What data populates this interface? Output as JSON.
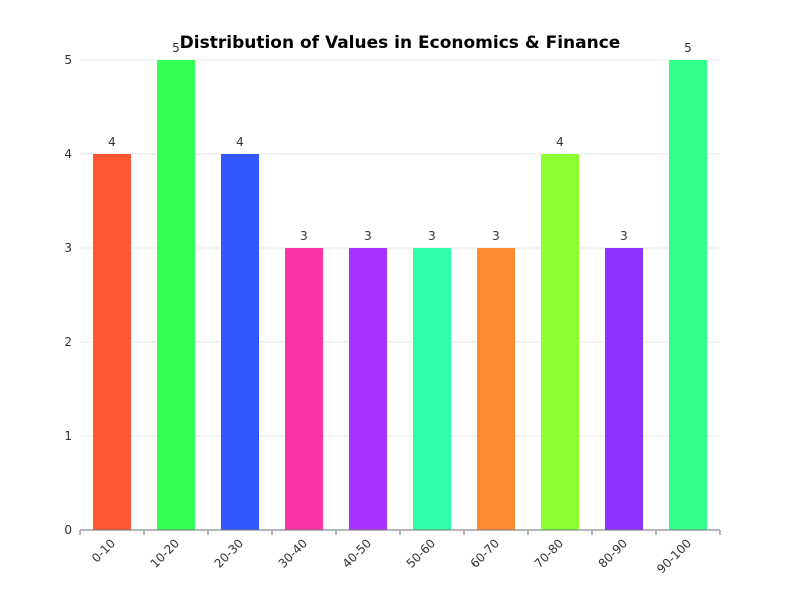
{
  "chart_data": {
    "type": "bar",
    "title": "Distribution of Values in Economics & Finance",
    "xlabel": "",
    "ylabel": "",
    "categories": [
      "0-10",
      "10-20",
      "20-30",
      "30-40",
      "40-50",
      "50-60",
      "60-70",
      "70-80",
      "80-90",
      "90-100"
    ],
    "values": [
      4,
      5,
      4,
      3,
      3,
      3,
      3,
      4,
      3,
      5
    ],
    "colors": [
      "#ff5733",
      "#33ff57",
      "#3357ff",
      "#ff33a8",
      "#a833ff",
      "#33ffa8",
      "#ff8c33",
      "#8cff33",
      "#8c33ff",
      "#33ff8c"
    ],
    "ylim": [
      0,
      5
    ],
    "yticks": [
      "0",
      "1",
      "2",
      "3",
      "4",
      "5"
    ],
    "grid": true,
    "legend": "none",
    "data_labels": true
  }
}
